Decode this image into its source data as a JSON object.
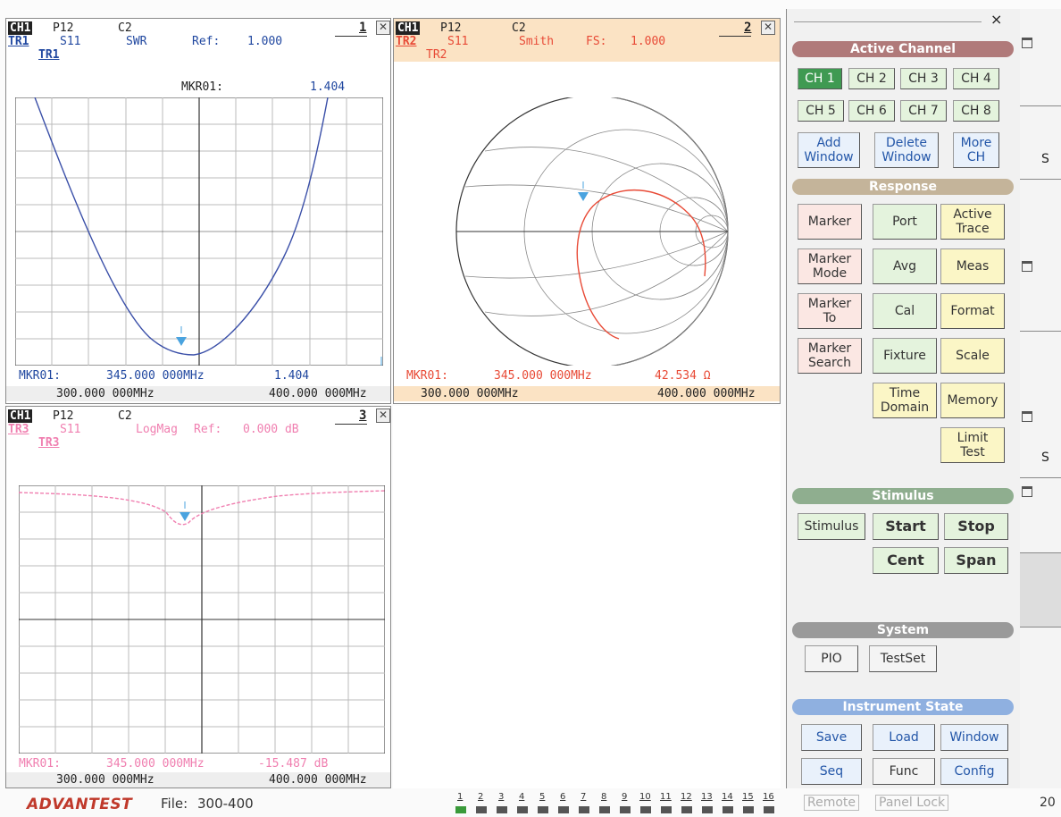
{
  "windows": [
    {
      "id": "1",
      "channel": "CH1",
      "port": "P12",
      "cal": "C2",
      "trace": "TR1",
      "param": "S11",
      "format": "SWR",
      "ref_label": "Ref:",
      "ref_value": "1.000",
      "trace_label": "TR1",
      "marker_header": "MKR01:",
      "marker_header_value": "1.404",
      "marker_name": "MKR01:",
      "marker_freq": "345.000 000MHz",
      "marker_value": "1.404",
      "start": "300.000 000MHz",
      "stop": "400.000 000MHz"
    },
    {
      "id": "2",
      "channel": "CH1",
      "port": "P12",
      "cal": "C2",
      "trace": "TR2",
      "param": "S11",
      "format": "Smith",
      "ref_label": "FS:",
      "ref_value": "1.000",
      "trace_label": "TR2",
      "marker_name": "MKR01:",
      "marker_freq": "345.000 000MHz",
      "marker_value": "42.534 Ω",
      "start": "300.000 000MHz",
      "stop": "400.000 000MHz"
    },
    {
      "id": "3",
      "channel": "CH1",
      "port": "P12",
      "cal": "C2",
      "trace": "TR3",
      "param": "S11",
      "format": "LogMag",
      "ref_label": "Ref:",
      "ref_value": "0.000 dB",
      "trace_label": "TR3",
      "marker_name": "MKR01:",
      "marker_freq": "345.000 000MHz",
      "marker_value": "-15.487 dB",
      "start": "300.000 000MHz",
      "stop": "400.000 000MHz"
    }
  ],
  "side": {
    "close": "×",
    "sections": {
      "active_channel": "Active Channel",
      "response": "Response",
      "stimulus": "Stimulus",
      "system": "System",
      "instrument_state": "Instrument State"
    },
    "channels": [
      "CH 1",
      "CH 2",
      "CH 3",
      "CH 4",
      "CH 5",
      "CH 6",
      "CH 7",
      "CH 8"
    ],
    "add_window": "Add\nWindow",
    "delete_window": "Delete\nWindow",
    "more_ch": "More\nCH",
    "response": {
      "marker": "Marker",
      "port": "Port",
      "active_trace": "Active\nTrace",
      "marker_mode": "Marker\nMode",
      "avg": "Avg",
      "meas": "Meas",
      "marker_to": "Marker\nTo",
      "cal": "Cal",
      "format": "Format",
      "marker_search": "Marker\nSearch",
      "fixture": "Fixture",
      "scale": "Scale",
      "time_domain": "Time\nDomain",
      "memory": "Memory",
      "limit_test": "Limit\nTest"
    },
    "stimulus": {
      "stimulus": "Stimulus",
      "start": "Start",
      "stop": "Stop",
      "cent": "Cent",
      "span": "Span"
    },
    "system": {
      "pio": "PIO",
      "testset": "TestSet"
    },
    "instrument": {
      "save": "Save",
      "load": "Load",
      "window": "Window",
      "seq": "Seq",
      "func": "Func",
      "config": "Config"
    }
  },
  "right_edge": {
    "s1": "S",
    "s2": "S"
  },
  "status": {
    "brand": "ADVANTEST",
    "file_label": "File:",
    "file_name": "300-400",
    "leds": [
      "1",
      "2",
      "3",
      "4",
      "5",
      "6",
      "7",
      "8",
      "9",
      "10",
      "11",
      "12",
      "13",
      "14",
      "15",
      "16"
    ],
    "remote": "Remote",
    "panel_lock": "Panel Lock",
    "year": "20"
  },
  "colors": {
    "swr_trace": "#3a4fa8",
    "smith_trace": "#e84a36",
    "logmag_trace": "#f07fb0",
    "marker": "#4aa3df",
    "win1_header": "#ffffff",
    "win2_header": "#fbe3c4",
    "win3_header": "#ffffff",
    "footer_peach": "#fbe3c4",
    "active_channel_bar": "#b07a7a",
    "response_bar": "#c4b49a",
    "stimulus_bar": "#8fae8f",
    "system_bar": "#9a9a9a",
    "instrument_bar": "#8fb0e0"
  }
}
